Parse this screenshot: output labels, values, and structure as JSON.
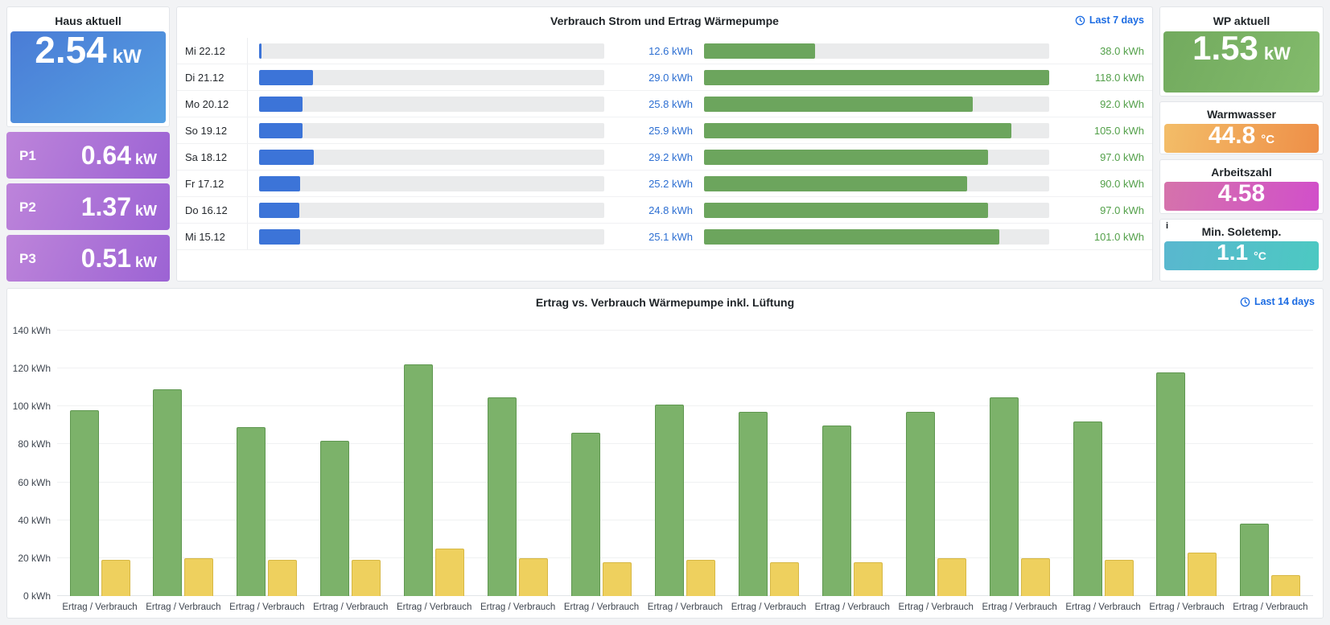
{
  "colors": {
    "accent_blue": "#1c6ce3",
    "bar_blue": "#3c74d8",
    "bar_green": "#6ca55d",
    "text_blue": "#2d6fd2",
    "text_green": "#53a04a",
    "chart_green": "#7cb26a",
    "chart_green_border": "#5f9750",
    "chart_yellow": "#eed05e",
    "chart_yellow_border": "#d7b845",
    "haus_from": "#4a7cd6",
    "haus_to": "#55a0e2",
    "p_from": "#bd84da",
    "p_to": "#9c63d4",
    "wp_from": "#72aa5e",
    "wp_to": "#83bb6c",
    "warm_from": "#f3bd68",
    "warm_to": "#ee8f48",
    "arbeit_from": "#d573ab",
    "arbeit_to": "#d14fca",
    "sole_from": "#59b7cf",
    "sole_to": "#4cc9c2"
  },
  "left": {
    "haus": {
      "title": "Haus aktuell",
      "value": "2.54",
      "unit": "kW"
    },
    "p_tiles": [
      {
        "label": "P1",
        "value": "0.64",
        "unit": "kW"
      },
      {
        "label": "P2",
        "value": "1.37",
        "unit": "kW"
      },
      {
        "label": "P3",
        "value": "0.51",
        "unit": "kW"
      }
    ]
  },
  "right": {
    "wp": {
      "title": "WP aktuell",
      "value": "1.53",
      "unit": "kW"
    },
    "warmwasser": {
      "title": "Warmwasser",
      "value": "44.8",
      "unit": "°C"
    },
    "arbeitszahl": {
      "title": "Arbeitszahl",
      "value": "4.58"
    },
    "soletemp": {
      "title": "Min. Soletemp.",
      "value": "1.1",
      "unit": "°C",
      "info_icon": "i"
    }
  },
  "middle": {
    "title": "Verbrauch Strom und Ertrag Wärmepumpe",
    "time_range": "Last 7 days"
  },
  "bottom": {
    "title": "Ertrag vs. Verbrauch Wärmepumpe inkl. Lüftung",
    "time_range": "Last 14 days"
  },
  "chart_data": [
    {
      "type": "table",
      "title": "Verbrauch Strom und Ertrag Wärmepumpe",
      "time_range": "Last 7 days",
      "strom_gauge": {
        "min": 12.6,
        "max": 118,
        "color": "#3c74d8"
      },
      "ertrag_gauge": {
        "min": 0,
        "max": 118,
        "color": "#6ca55d"
      },
      "rows": [
        {
          "day": "Mi 22.12",
          "strom": 12.6,
          "strom_label": "12.6 kWh",
          "ertrag": 38.0,
          "ertrag_label": "38.0 kWh"
        },
        {
          "day": "Di 21.12",
          "strom": 29.0,
          "strom_label": "29.0 kWh",
          "ertrag": 118.0,
          "ertrag_label": "118.0 kWh"
        },
        {
          "day": "Mo 20.12",
          "strom": 25.8,
          "strom_label": "25.8 kWh",
          "ertrag": 92.0,
          "ertrag_label": "92.0 kWh"
        },
        {
          "day": "So 19.12",
          "strom": 25.9,
          "strom_label": "25.9 kWh",
          "ertrag": 105.0,
          "ertrag_label": "105.0 kWh"
        },
        {
          "day": "Sa 18.12",
          "strom": 29.2,
          "strom_label": "29.2 kWh",
          "ertrag": 97.0,
          "ertrag_label": "97.0 kWh"
        },
        {
          "day": "Fr 17.12",
          "strom": 25.2,
          "strom_label": "25.2 kWh",
          "ertrag": 90.0,
          "ertrag_label": "90.0 kWh"
        },
        {
          "day": "Do 16.12",
          "strom": 24.8,
          "strom_label": "24.8 kWh",
          "ertrag": 97.0,
          "ertrag_label": "97.0 kWh"
        },
        {
          "day": "Mi 15.12",
          "strom": 25.1,
          "strom_label": "25.1 kWh",
          "ertrag": 101.0,
          "ertrag_label": "101.0 kWh"
        }
      ]
    },
    {
      "type": "bar",
      "title": "Ertrag vs. Verbrauch Wärmepumpe inkl. Lüftung",
      "time_range": "Last 14 days",
      "categories": [
        "Ertrag / Verbrauch",
        "Ertrag / Verbrauch",
        "Ertrag / Verbrauch",
        "Ertrag / Verbrauch",
        "Ertrag / Verbrauch",
        "Ertrag / Verbrauch",
        "Ertrag / Verbrauch",
        "Ertrag / Verbrauch",
        "Ertrag / Verbrauch",
        "Ertrag / Verbrauch",
        "Ertrag / Verbrauch",
        "Ertrag / Verbrauch",
        "Ertrag / Verbrauch",
        "Ertrag / Verbrauch",
        "Ertrag / Verbrauch"
      ],
      "series": [
        {
          "name": "Ertrag",
          "color": "#7cb26a",
          "values": [
            98,
            109,
            89,
            82,
            122,
            105,
            86,
            101,
            97,
            90,
            97,
            105,
            92,
            118,
            38
          ]
        },
        {
          "name": "Verbrauch",
          "color": "#eed05e",
          "values": [
            19,
            20,
            19,
            19,
            25,
            20,
            18,
            19,
            18,
            18,
            20,
            20,
            19,
            23,
            11
          ]
        }
      ],
      "ylabel_unit": "kWh",
      "ylim": [
        0,
        140
      ],
      "y_ticks": [
        "0 kWh",
        "20 kWh",
        "40 kWh",
        "60 kWh",
        "80 kWh",
        "100 kWh",
        "120 kWh",
        "140 kWh"
      ],
      "grid": true,
      "legend": "none"
    }
  ]
}
